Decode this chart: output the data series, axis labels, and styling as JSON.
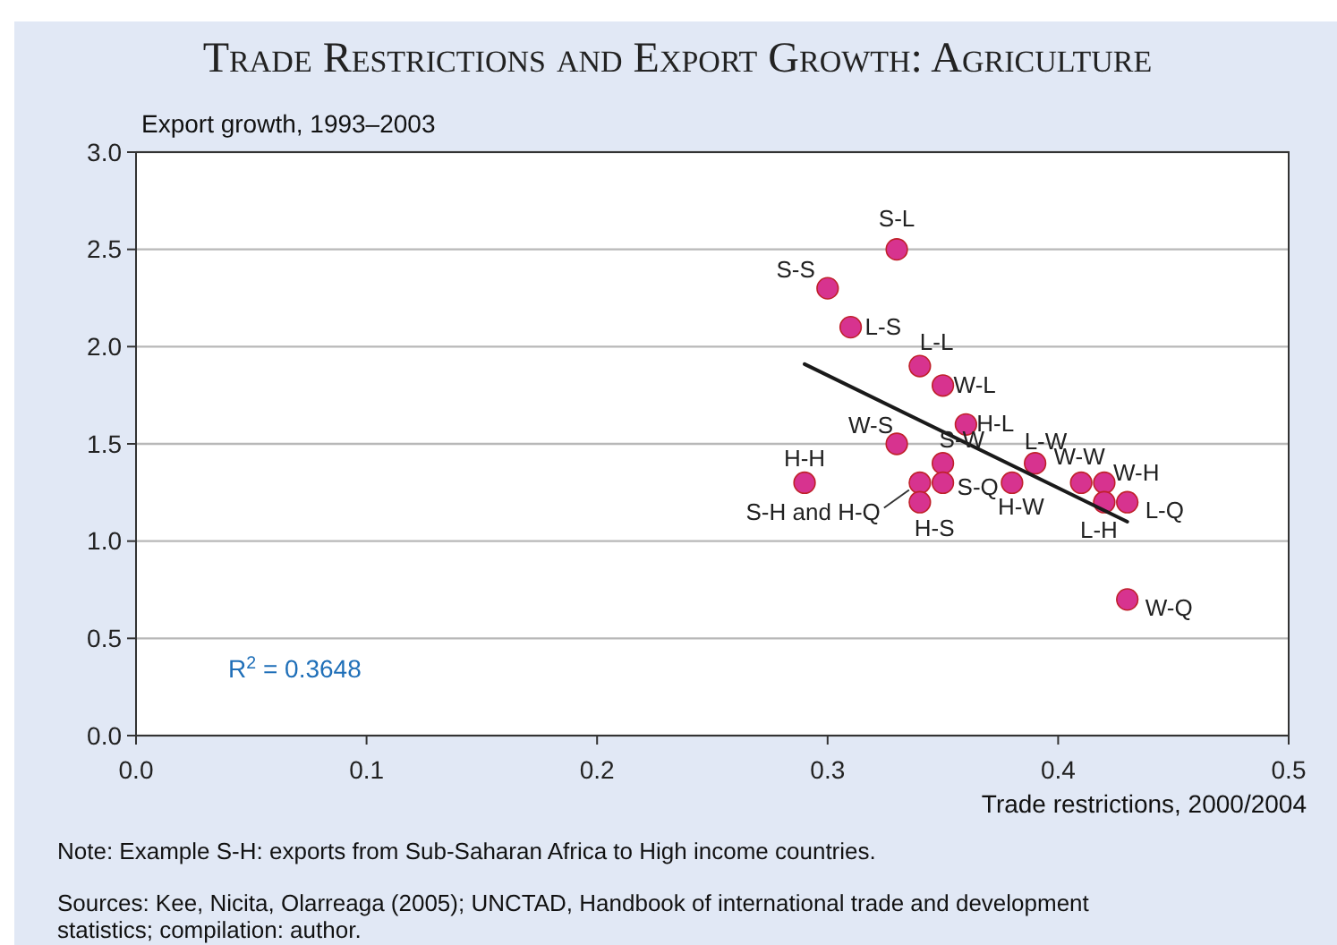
{
  "chart_data": {
    "type": "scatter",
    "title": "Trade Restrictions and Export Growth: Agriculture",
    "xlabel": "Trade restrictions, 2000/2004",
    "ylabel": "Export growth, 1993–2003",
    "xlim": [
      0,
      0.5
    ],
    "xticks": [
      {
        "value": 0,
        "label": "0.0"
      },
      0.1,
      0.2,
      0.3,
      0.4,
      0.5
    ],
    "ylim": [
      0,
      3
    ],
    "yticks": [
      {
        "value": 0,
        "label": "0.0"
      },
      0.5,
      {
        "value": 1,
        "label": "1.0"
      },
      1.5,
      {
        "value": 2,
        "label": "2.0"
      },
      2.5,
      {
        "value": 3,
        "label": "3.0"
      }
    ],
    "grid": "y",
    "marker": "circle",
    "series": [
      {
        "color": "#d7338f",
        "x": [
          0.33,
          0.3,
          0.31,
          0.34,
          0.35,
          0.36,
          0.33,
          0.35,
          0.29,
          0.34,
          0.35,
          0.34,
          0.38,
          0.39,
          0.41,
          0.42,
          0.42,
          0.43,
          0.43
        ],
        "values": [
          2.5,
          2.3,
          2.1,
          1.9,
          1.8,
          1.6,
          1.5,
          1.4,
          1.3,
          1.3,
          1.3,
          1.2,
          1.3,
          1.4,
          1.3,
          1.3,
          1.2,
          1.2,
          0.7
        ]
      },
      {
        "type": "line",
        "color": "#1a1a1a",
        "line_style": "solid",
        "marker": "none",
        "x": [
          0.29,
          0.43
        ],
        "values": [
          1.91,
          1.1
        ]
      }
    ],
    "annotations": [
      {
        "text": "S-L",
        "x": 0.33,
        "y": 2.5
      },
      {
        "text": "S-S",
        "x": 0.3,
        "y": 2.3
      },
      {
        "text": "L-S",
        "x": 0.31,
        "y": 2.1
      },
      {
        "text": "L-L",
        "x": 0.34,
        "y": 1.9
      },
      {
        "text": "W-L",
        "x": 0.35,
        "y": 1.8
      },
      {
        "text": "H-L",
        "x": 0.36,
        "y": 1.6
      },
      {
        "text": "W-S",
        "x": 0.33,
        "y": 1.5
      },
      {
        "text": "S-W",
        "x": 0.35,
        "y": 1.4
      },
      {
        "text": "H-H",
        "x": 0.29,
        "y": 1.3
      },
      {
        "text": "S-H and H-Q",
        "x": 0.34,
        "y": 1.3
      },
      {
        "text": "S-Q",
        "x": 0.35,
        "y": 1.3
      },
      {
        "text": "H-S",
        "x": 0.34,
        "y": 1.2
      },
      {
        "text": "H-W",
        "x": 0.38,
        "y": 1.3
      },
      {
        "text": "L-W",
        "x": 0.39,
        "y": 1.4
      },
      {
        "text": "W-W",
        "x": 0.41,
        "y": 1.3
      },
      {
        "text": "W-H",
        "x": 0.42,
        "y": 1.3
      },
      {
        "text": "L-H",
        "x": 0.42,
        "y": 1.2
      },
      {
        "text": "L-Q",
        "x": 0.43,
        "y": 1.2
      },
      {
        "text": "W-Q",
        "x": 0.43,
        "y": 0.7
      },
      "R$^{2}$ = 0.3648",
      "Note: Example S-H:  exports from Sub-Saharan Africa to High income countries.",
      "Sources: Kee, Nicita, Olarreaga (2005); UNCTAD, Handbook of international trade and development statistics; compilation: author."
    ]
  }
}
